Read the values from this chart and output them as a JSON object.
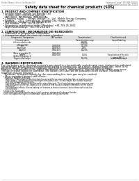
{
  "bg_color": "#ffffff",
  "header_left": "Product Name: Lithium Ion Battery Cell",
  "header_right_line1": "Substance Control: SDS-ENE-000018",
  "header_right_line2": "Established / Revision: Dec.7.2010",
  "title": "Safety data sheet for chemical products (SDS)",
  "section1_header": "1. PRODUCT AND COMPANY IDENTIFICATION",
  "section1_lines": [
    "  • Product name: Lithium Ion Battery Cell",
    "  • Product code: Cylindrical type cell",
    "    (INR18650, INR18650A, INR18650A)",
    "  • Company name:    Energy Storage Co., Ltd.  Mobile Energy Company",
    "  • Address:    2231  Kannakeduri, Sumoto-City, Hyogo, Japan",
    "  • Telephone number:   +81-799-26-4111",
    "  • Fax number:  +81-799-26-4120",
    "  • Emergency telephone number (Weekday) +81-799-26-2662",
    "    (Night and holidays) +81-799-26-4120"
  ],
  "section2_header": "2. COMPOSITION / INFORMATION ON INGREDIENTS",
  "section2_sub": "  • Substance or preparation: Preparation",
  "section2_sub2": "  • Information about the chemical nature of product",
  "table_col_headers": [
    "Component / Composition\n/ General name",
    "CAS number",
    "Concentration /\nConcentration range\n(20-60%)",
    "Classification and\nhazard labeling"
  ],
  "table_rows": [
    [
      "Lithium cobalt oxide\n(LiMn-Co)(O4)",
      "-",
      "20-60%",
      "-"
    ],
    [
      "Iron",
      "7439-89-6",
      "15-25%",
      "-"
    ],
    [
      "Aluminum",
      "7429-90-5",
      "2-8%",
      "-"
    ],
    [
      "Graphite\n(Meta in graphite-1)\n(A-Mix in graphite-1)",
      "7782-42-5\n7782-44-0",
      "10-25%",
      "-"
    ],
    [
      "Copper",
      "7440-50-8",
      "5-10%",
      "Sensitization of the skin\ngroup R43-2"
    ],
    [
      "Organic electrolyte",
      "-",
      "10-25%",
      "Inflammable liquid"
    ]
  ],
  "section3_header": "3. HAZARDS IDENTIFICATION",
  "section3_lines": [
    "For this battery cell, chemical materials are stored in a hermetically sealed metal case, designed to withstand",
    "temperatures and pressure/environmental during its normal use. As a result, during normal use, there is no",
    "physical danger of ignition or explosion and there is a change of hazardous materials leakage.",
    "However, if exposed to a fire, added mechanical shocks, decomposed, extreme adverse effects may occur.",
    "The gas release cannot be operated. The battery cell case will be punctured at the surface. Hazardous",
    "materials may be released.",
    "    Moreover, if heated strongly by the surrounding fire, toxic gas may be emitted."
  ],
  "section3_bullet1": "  • Most important hazard and effects:",
  "section3_sub1": "    Human health effects:",
  "section3_sub1_lines": [
    "        Inhalation: The release of the electrolyte has an anesthesia action and stimulates a respiratory tract.",
    "        Skin contact: The release of the electrolyte stimulates a skin. The electrolyte skin contact causes a",
    "        sore and stimulation on the skin.",
    "        Eye contact: The release of the electrolyte stimulates eyes. The electrolyte eye contact causes a sore",
    "        and stimulation on the eye. Especially, a substance that causes a strong inflammation of the eyes is",
    "        contained.",
    "        Environmental effects: Since a battery cell remains in the environment, do not throw out it into the",
    "        environment."
  ],
  "section3_bullet2": "  • Specific hazards:",
  "section3_specific_lines": [
    "    If the electrolyte contacts with water, it will generate detrimental hydrogen fluoride.",
    "    Since the liquid electrolyte is inflammable liquid, do not bring close to fire."
  ]
}
